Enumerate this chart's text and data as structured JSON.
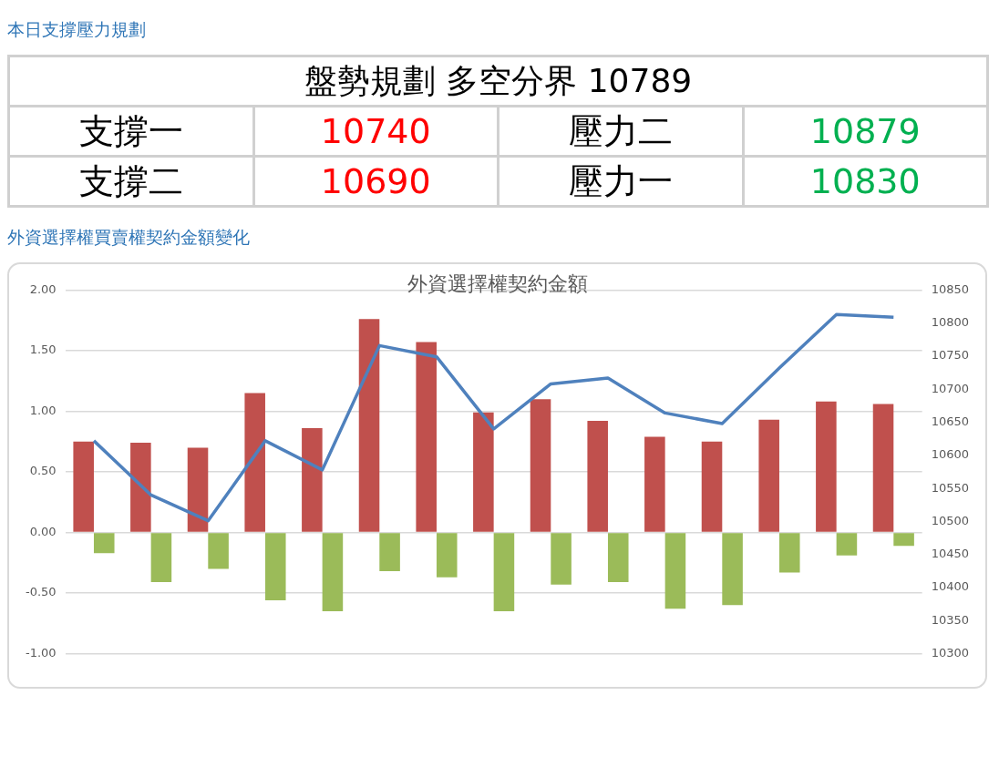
{
  "chart_data": [
    {
      "type": "other",
      "title": "本日支撐壓力規劃",
      "annotations": [
        "盤勢規劃 多空分界 10789",
        "支撐一",
        "10740",
        "壓力二",
        "10879",
        "支撐二",
        "10690",
        "壓力一",
        "10830"
      ],
      "colors": [
        "#000000",
        "#000000",
        "#ff0000",
        "#000000",
        "#00b050",
        "#000000",
        "#ff0000",
        "#000000",
        "#00b050"
      ]
    },
    {
      "type": "bar",
      "title": "外資選擇權買賣權契約金額變化",
      "subtitle": "外資選擇權契約金額",
      "categories": [
        null,
        null,
        null,
        null,
        null,
        null,
        null,
        null,
        null,
        null,
        null,
        null,
        null,
        null,
        null
      ],
      "series": [
        {
          "type": "bar",
          "color": "#c0504d",
          "values": [
            0.75,
            0.74,
            0.7,
            1.15,
            0.86,
            1.76,
            1.57,
            0.99,
            1.1,
            0.92,
            0.79,
            0.75,
            0.93,
            1.08,
            1.06
          ]
        },
        {
          "type": "bar",
          "color": "#9bbb59",
          "values": [
            -0.17,
            -0.41,
            -0.3,
            -0.56,
            -0.65,
            -0.32,
            -0.37,
            -0.65,
            -0.43,
            -0.41,
            -0.63,
            -0.6,
            -0.33,
            -0.19,
            -0.11
          ]
        },
        {
          "type": "line",
          "axis": "y2",
          "color": "#4f81bd",
          "values": [
            10622,
            10540,
            10501,
            10622,
            10578,
            10766,
            10749,
            10640,
            10708,
            10717,
            10664,
            10648,
            10732,
            10813,
            10809
          ]
        }
      ],
      "ylim": [
        -1,
        2
      ],
      "yticks": [
        {
          "value": -1,
          "label": "-1.00"
        },
        {
          "value": -0.5,
          "label": "-0.50"
        },
        {
          "value": 0,
          "label": "0.00"
        },
        {
          "value": 0.5,
          "label": "0.50"
        },
        {
          "value": 1,
          "label": "1.00"
        },
        {
          "value": 1.5,
          "label": "1.50"
        },
        {
          "value": 2,
          "label": "2.00"
        }
      ],
      "y2lim": [
        10300,
        10850
      ],
      "y2ticks": [
        10300,
        10350,
        10400,
        10450,
        10500,
        10550,
        10600,
        10650,
        10700,
        10750,
        10800,
        10850
      ],
      "grid": "y",
      "legend": false,
      "marker": "none"
    }
  ]
}
